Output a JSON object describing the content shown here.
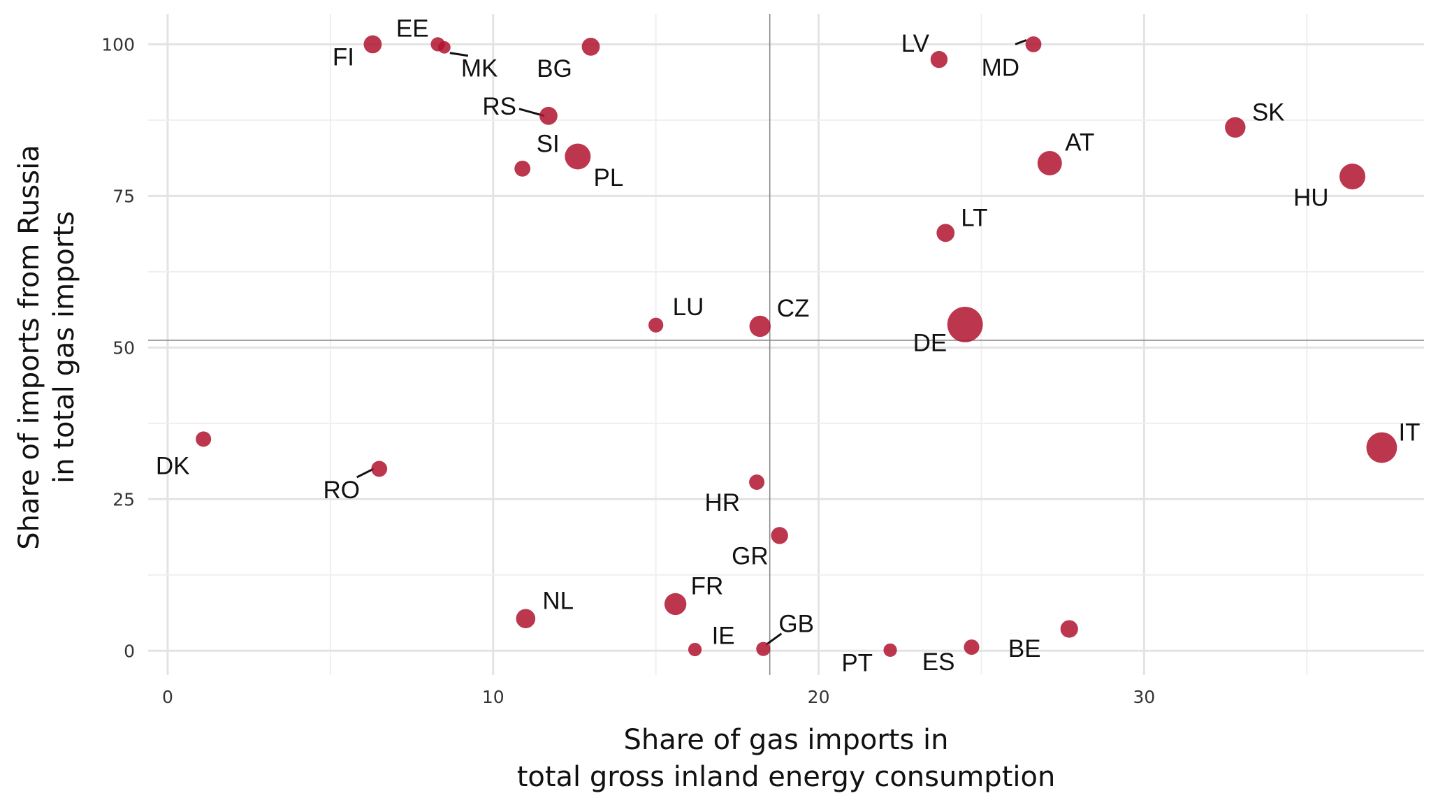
{
  "chart_data": {
    "type": "scatter",
    "xlabel": [
      "Share of gas imports in",
      "total gross inland energy consumption"
    ],
    "ylabel": [
      "Share of imports from Russia",
      "in total gas imports"
    ],
    "xlim": [
      -0.6,
      38.6
    ],
    "ylim": [
      -4,
      105
    ],
    "x_ticks": [
      0,
      10,
      20,
      30
    ],
    "y_ticks": [
      0,
      25,
      50,
      75,
      100
    ],
    "x_tick_labels": [
      "0",
      "10",
      "20",
      "30"
    ],
    "y_tick_labels": [
      "0",
      "25",
      "50",
      "75",
      "100"
    ],
    "reference_lines": {
      "x": 18.5,
      "y": 51.2
    },
    "point_color": "#b0132f",
    "grid": true,
    "legend": "none",
    "points": [
      {
        "label": "FI",
        "x": 6.3,
        "y": 100,
        "size": 1.2
      },
      {
        "label": "EE",
        "x": 8.3,
        "y": 100,
        "size": 0.5
      },
      {
        "label": "MK",
        "x": 8.5,
        "y": 99.5,
        "size": 0.3
      },
      {
        "label": "BG",
        "x": 13.0,
        "y": 99.6,
        "size": 1.2
      },
      {
        "label": "RS",
        "x": 11.7,
        "y": 88.2,
        "size": 1.2
      },
      {
        "label": "SI",
        "x": 10.9,
        "y": 79.5,
        "size": 0.8
      },
      {
        "label": "PL",
        "x": 12.6,
        "y": 81.5,
        "size": 3.5
      },
      {
        "label": "LV",
        "x": 23.7,
        "y": 97.5,
        "size": 1.0
      },
      {
        "label": "MD",
        "x": 26.6,
        "y": 100,
        "size": 0.8
      },
      {
        "label": "SK",
        "x": 32.8,
        "y": 86.3,
        "size": 1.8
      },
      {
        "label": "AT",
        "x": 27.1,
        "y": 80.4,
        "size": 3.0
      },
      {
        "label": "HU",
        "x": 36.4,
        "y": 78.2,
        "size": 3.5
      },
      {
        "label": "LT",
        "x": 23.9,
        "y": 68.9,
        "size": 1.2
      },
      {
        "label": "LU",
        "x": 15.0,
        "y": 53.7,
        "size": 0.6
      },
      {
        "label": "CZ",
        "x": 18.2,
        "y": 53.5,
        "size": 2.0
      },
      {
        "label": "DE",
        "x": 24.5,
        "y": 53.8,
        "size": 8.0
      },
      {
        "label": "DK",
        "x": 1.1,
        "y": 34.9,
        "size": 0.7
      },
      {
        "label": "IT",
        "x": 37.3,
        "y": 33.5,
        "size": 5.5
      },
      {
        "label": "RO",
        "x": 6.5,
        "y": 30.0,
        "size": 0.8
      },
      {
        "label": "HR",
        "x": 18.1,
        "y": 27.8,
        "size": 0.7
      },
      {
        "label": "GR",
        "x": 18.8,
        "y": 19.0,
        "size": 1.0
      },
      {
        "label": "FR",
        "x": 15.6,
        "y": 7.7,
        "size": 2.2
      },
      {
        "label": "NL",
        "x": 11.0,
        "y": 5.3,
        "size": 1.5
      },
      {
        "label": "IE",
        "x": 16.2,
        "y": 0.2,
        "size": 0.4
      },
      {
        "label": "GB",
        "x": 18.3,
        "y": 0.3,
        "size": 0.5
      },
      {
        "label": "PT",
        "x": 22.2,
        "y": 0.1,
        "size": 0.4
      },
      {
        "label": "ES",
        "x": 24.7,
        "y": 0.6,
        "size": 0.7
      },
      {
        "label": "BE",
        "x": 27.7,
        "y": 3.6,
        "size": 1.1
      }
    ]
  }
}
